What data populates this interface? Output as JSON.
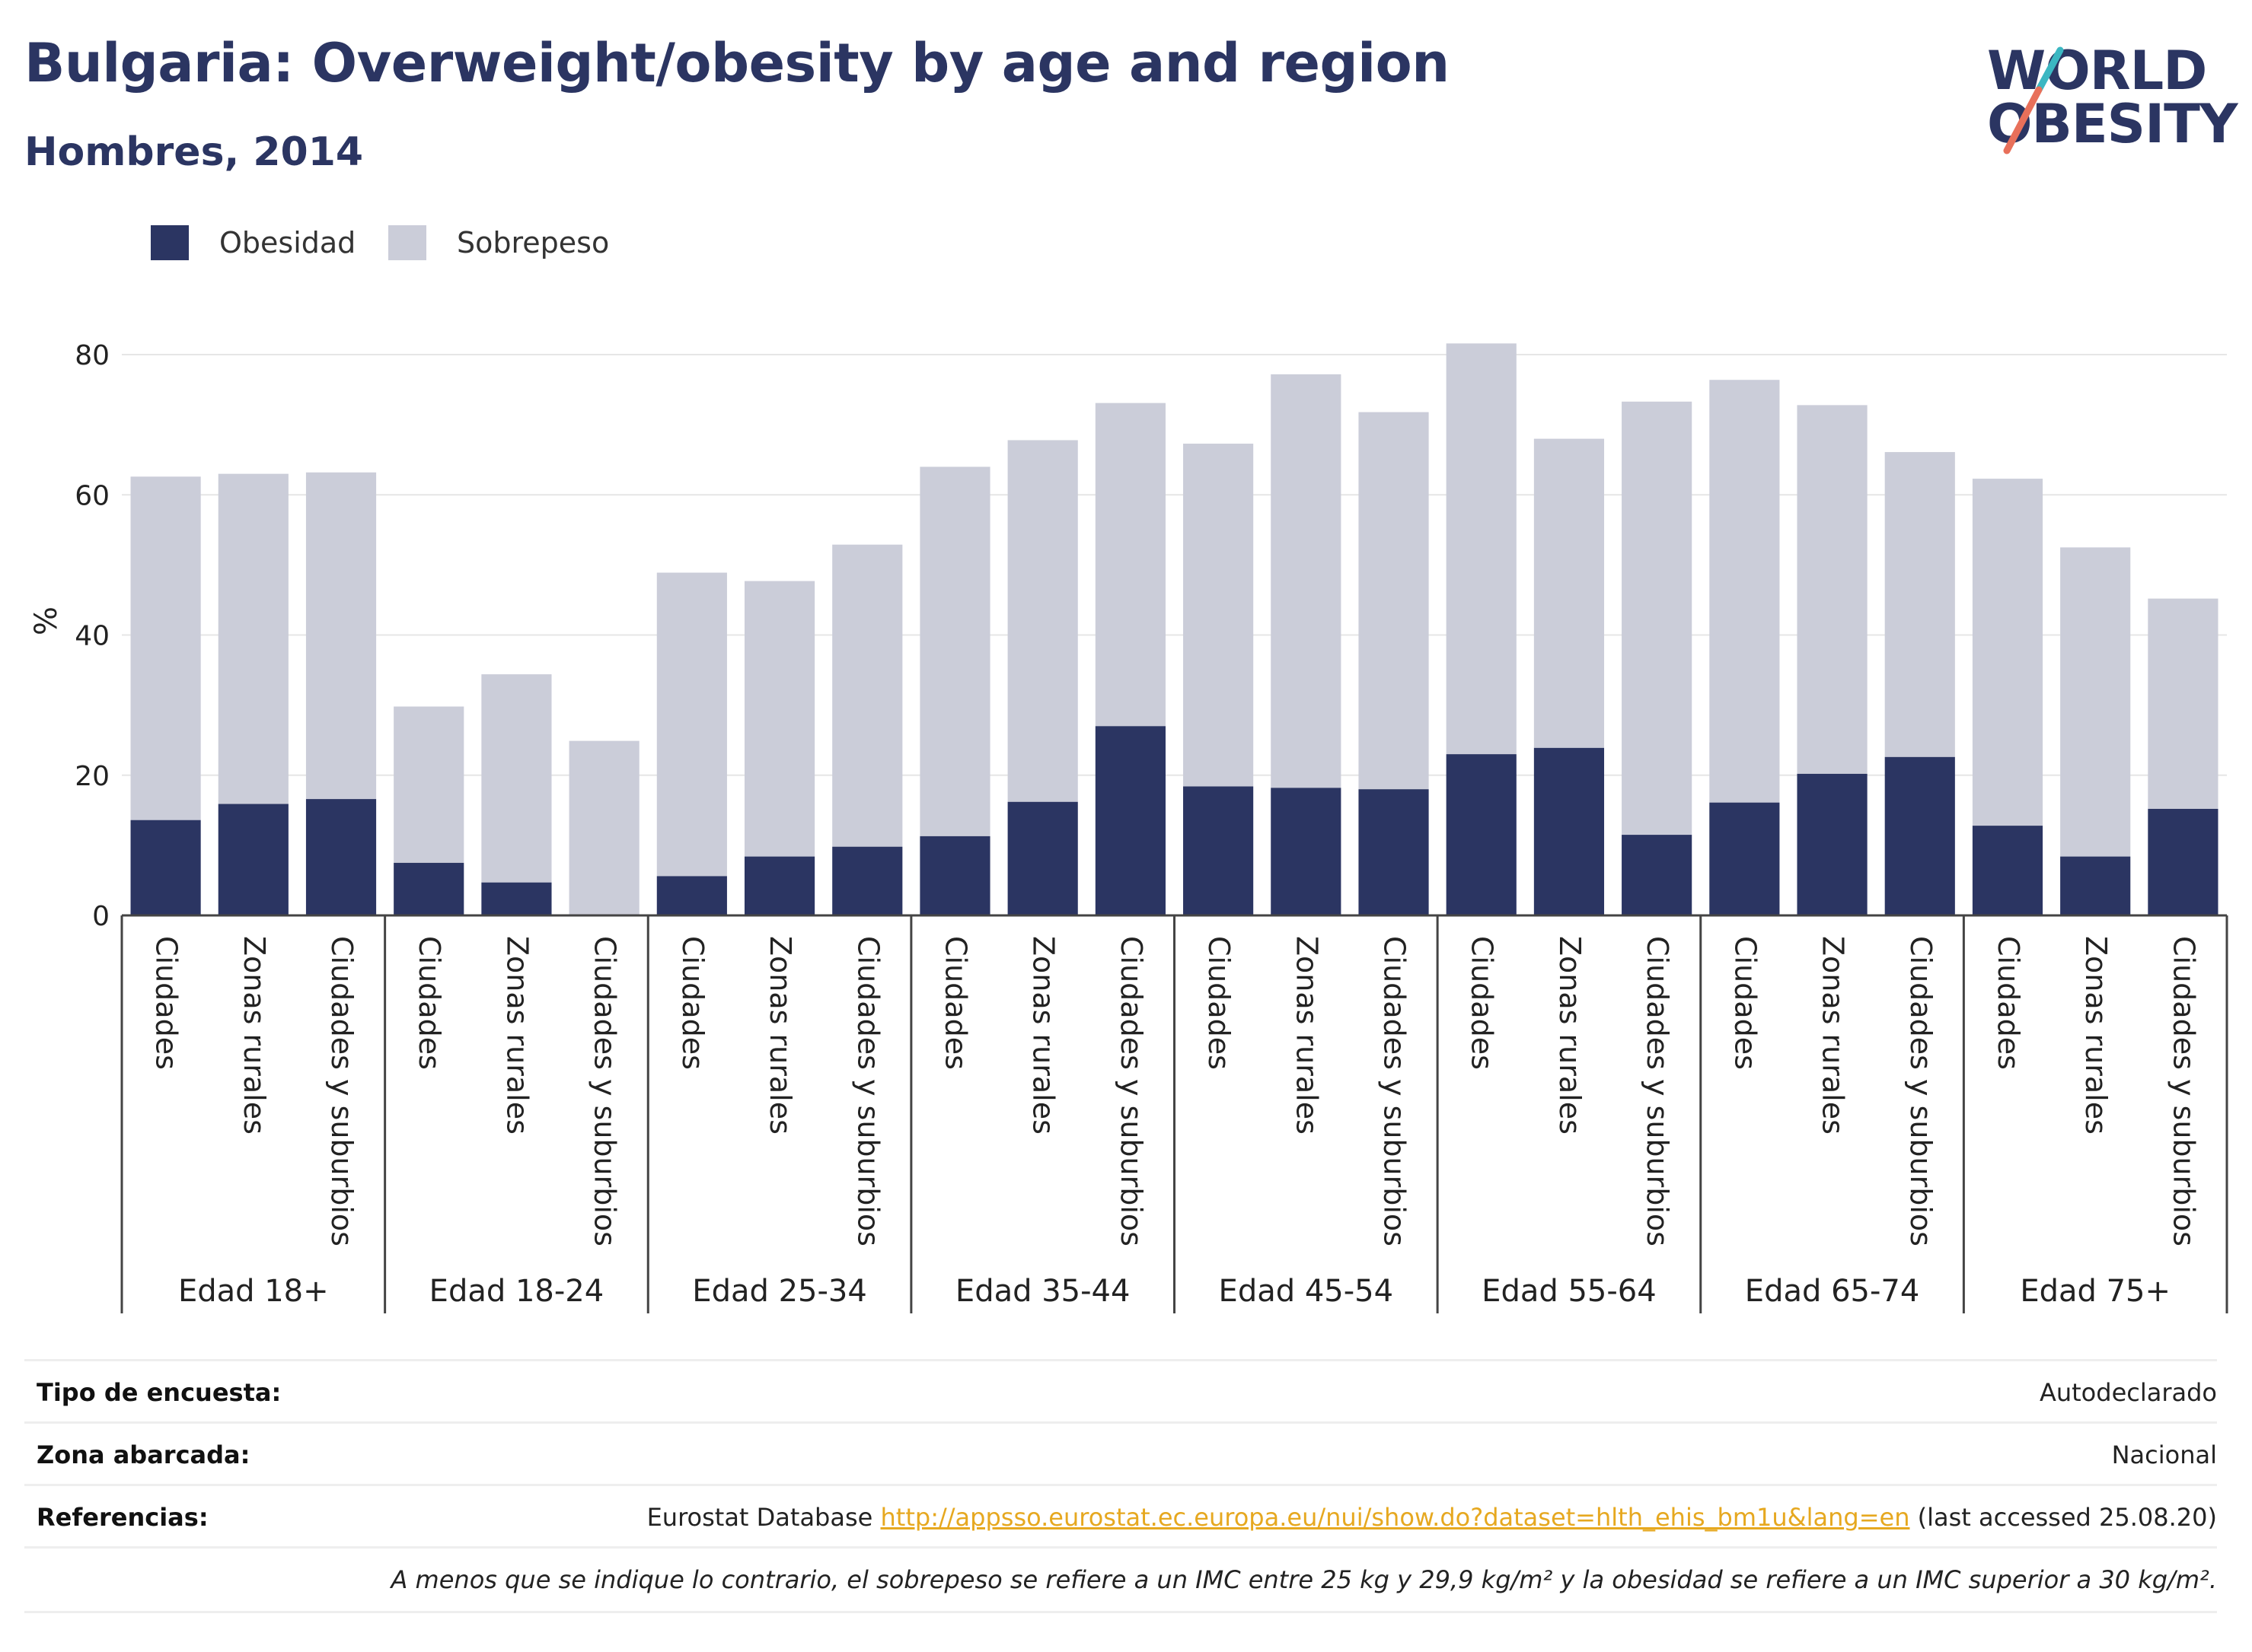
{
  "header": {
    "title": "Bulgaria: Overweight/obesity by age and region",
    "subtitle": "Hombres, 2014"
  },
  "logo": {
    "line1": "WORLD",
    "line2": "OBESITY",
    "accent_teal": "#3bb7c2",
    "accent_coral": "#e8705a"
  },
  "colors": {
    "obesity": "#2b3562",
    "overweight": "#cbcdd9",
    "gridline": "#e6e6e6",
    "axis": "#444444"
  },
  "legend": [
    {
      "label": "Obesidad",
      "color": "#2b3562"
    },
    {
      "label": "Sobrepeso",
      "color": "#cbcdd9"
    }
  ],
  "chart_data": {
    "type": "bar",
    "stacked": true,
    "ylabel": "%",
    "ylim": [
      0,
      85
    ],
    "yticks": [
      0,
      20,
      40,
      60,
      80
    ],
    "grid": true,
    "legend_position": "top-left",
    "groups": [
      {
        "label": "Edad 18+",
        "categories": [
          "Ciudades",
          "Zonas rurales",
          "Ciudades y suburbios"
        ]
      },
      {
        "label": "Edad 18-24",
        "categories": [
          "Ciudades",
          "Zonas rurales",
          "Ciudades y suburbios"
        ]
      },
      {
        "label": "Edad 25-34",
        "categories": [
          "Ciudades",
          "Zonas rurales",
          "Ciudades y suburbios"
        ]
      },
      {
        "label": "Edad 35-44",
        "categories": [
          "Ciudades",
          "Zonas rurales",
          "Ciudades y suburbios"
        ]
      },
      {
        "label": "Edad 45-54",
        "categories": [
          "Ciudades",
          "Zonas rurales",
          "Ciudades y suburbios"
        ]
      },
      {
        "label": "Edad 55-64",
        "categories": [
          "Ciudades",
          "Zonas rurales",
          "Ciudades y suburbios"
        ]
      },
      {
        "label": "Edad 65-74",
        "categories": [
          "Ciudades",
          "Zonas rurales",
          "Ciudades y suburbios"
        ]
      },
      {
        "label": "Edad 75+",
        "categories": [
          "Ciudades",
          "Zonas rurales",
          "Ciudades y suburbios"
        ]
      }
    ],
    "series": [
      {
        "name": "Obesidad",
        "values": [
          13.6,
          15.9,
          16.6,
          7.5,
          4.7,
          0.0,
          5.6,
          8.4,
          9.8,
          11.3,
          16.2,
          27.0,
          18.4,
          18.2,
          18.0,
          23.0,
          23.9,
          11.5,
          16.1,
          20.2,
          22.6,
          12.8,
          8.4,
          15.2
        ]
      },
      {
        "name": "Sobrepeso",
        "values": [
          49.0,
          47.1,
          46.6,
          22.3,
          29.7,
          24.9,
          43.3,
          39.3,
          43.1,
          52.7,
          51.6,
          46.1,
          48.9,
          59.0,
          53.8,
          58.6,
          44.1,
          61.8,
          60.3,
          52.6,
          43.5,
          49.5,
          44.1,
          30.0
        ]
      }
    ]
  },
  "meta": {
    "survey_type_label": "Tipo de encuesta:",
    "survey_type_value": "Autodeclarado",
    "area_label": "Zona abarcada:",
    "area_value": "Nacional",
    "references_label": "Referencias:",
    "references_prefix": "Eurostat Database",
    "references_link": "http://appsso.eurostat.ec.europa.eu/nui/show.do?dataset=hlth_ehis_bm1u&lang=en",
    "references_suffix": "(last accessed 25.08.20)",
    "note": "A menos que se indique lo contrario, el sobrepeso se refiere a un IMC entre 25 kg y 29,9 kg/m² y la obesidad se refiere a un IMC superior a 30 kg/m²."
  }
}
